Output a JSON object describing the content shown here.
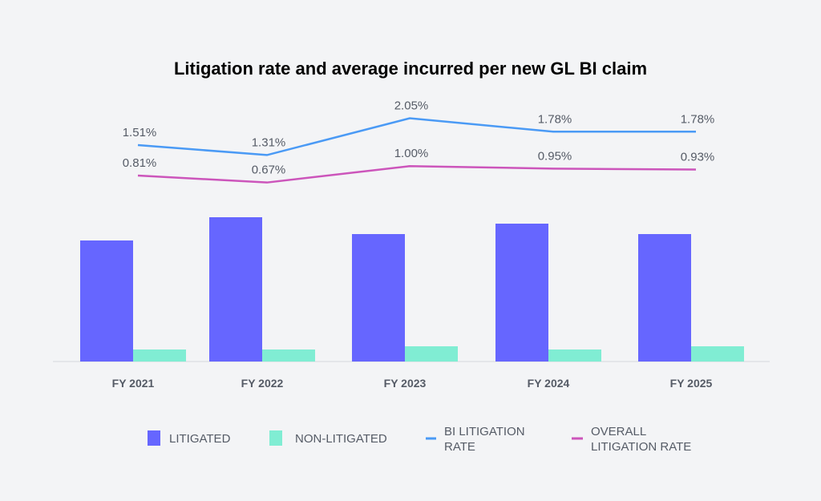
{
  "chart_data": {
    "type": "bar",
    "title": "Litigation rate and average incurred per new GL BI claim",
    "xlabel": "",
    "ylabel": "",
    "categories": [
      "FY 2021",
      "FY 2022",
      "FY 2023",
      "FY 2024",
      "FY 2025"
    ],
    "series": [
      {
        "name": "LITIGATED",
        "type": "bar",
        "color": "#6666ff",
        "values": [
          151,
          180,
          159,
          172,
          159
        ],
        "note_units": "relative (no axis shown)"
      },
      {
        "name": "NON-LITIGATED",
        "type": "bar",
        "color": "#80edd3",
        "values": [
          15,
          15,
          19,
          15,
          19
        ]
      },
      {
        "name": "BI LITIGATION RATE",
        "type": "line",
        "color": "#4a9af5",
        "values": [
          1.51,
          1.31,
          2.05,
          1.78,
          1.78
        ],
        "labels": [
          "1.51%",
          "1.31%",
          "2.05%",
          "1.78%",
          "1.78%"
        ]
      },
      {
        "name": "OVERALL LITIGATION RATE",
        "type": "line",
        "color": "#cc55bb",
        "values": [
          0.81,
          0.67,
          1.0,
          0.95,
          0.93
        ],
        "labels": [
          "0.81%",
          "0.67%",
          "1.00%",
          "0.95%",
          "0.93%"
        ]
      }
    ],
    "grid": false,
    "legend": {
      "placement": "bottom",
      "items": [
        {
          "label": "LITIGATED"
        },
        {
          "label_lines": [
            "NON-LITIGATED"
          ]
        },
        {
          "label_lines": [
            "BI LITIGATION",
            "RATE"
          ]
        },
        {
          "label_lines": [
            "OVERALL",
            "LITIGATION RATE"
          ]
        }
      ]
    }
  }
}
